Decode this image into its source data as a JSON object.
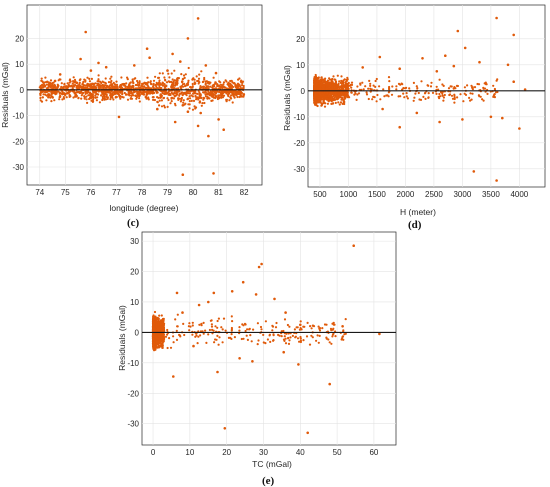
{
  "colors": {
    "marker": "#e05a0a",
    "zero_line": "#1a1a1a",
    "grid": "#e3e3e3",
    "axis": "#262626"
  },
  "chart_data": [
    {
      "type": "scatter",
      "panel": "(c)",
      "xlabel": "longitude (degree)",
      "ylabel": "Residuals (mGal)",
      "xlim": [
        73.5,
        82.7
      ],
      "ylim": [
        -37,
        33
      ],
      "xticks": [
        74,
        75,
        76,
        77,
        78,
        79,
        80,
        81,
        82
      ],
      "yticks": [
        -30,
        -20,
        -10,
        0,
        10,
        20
      ],
      "grid": true,
      "reference_line_y": 0,
      "points": [
        [
          75.8,
          22.5
        ],
        [
          80.2,
          27.8
        ],
        [
          75.6,
          12.0
        ],
        [
          76.3,
          10.5
        ],
        [
          78.3,
          12.5
        ],
        [
          79.2,
          14.0
        ],
        [
          79.5,
          11.0
        ],
        [
          80.5,
          9.5
        ],
        [
          80.9,
          6.5
        ],
        [
          79.8,
          20.0
        ],
        [
          78.2,
          16.0
        ],
        [
          76.0,
          7.5
        ],
        [
          74.8,
          6.0
        ],
        [
          74.6,
          3.5
        ],
        [
          76.6,
          8.8
        ],
        [
          77.7,
          9.5
        ],
        [
          79.0,
          7.5
        ],
        [
          79.6,
          -6.0
        ],
        [
          79.8,
          -8.5
        ],
        [
          80.3,
          -9.0
        ],
        [
          80.2,
          -14.0
        ],
        [
          80.6,
          -18.0
        ],
        [
          81.0,
          -11.5
        ],
        [
          81.2,
          -15.5
        ],
        [
          80.8,
          -32.5
        ],
        [
          79.6,
          -33.0
        ],
        [
          77.1,
          -10.5
        ],
        [
          78.6,
          -7.5
        ],
        [
          79.3,
          -12.5
        ],
        [
          81.5,
          1.5
        ],
        [
          81.8,
          -1.5
        ]
      ],
      "dense_band": {
        "x_range": [
          74.0,
          82.0
        ],
        "typical_y_spread": 3.5,
        "estimated_points": 1500
      }
    },
    {
      "type": "scatter",
      "panel": "(d)",
      "xlabel": "H (meter)",
      "ylabel": "Residuals (mGal)",
      "xlim": [
        290,
        4450
      ],
      "ylim": [
        -37,
        33
      ],
      "xticks": [
        500,
        1000,
        1500,
        2000,
        2500,
        3000,
        3500,
        4000
      ],
      "yticks": [
        -30,
        -20,
        -10,
        0,
        10,
        20
      ],
      "grid": true,
      "reference_line_y": 0,
      "points": [
        [
          3600,
          28.0
        ],
        [
          2920,
          23.0
        ],
        [
          3900,
          21.5
        ],
        [
          3050,
          16.5
        ],
        [
          2700,
          13.5
        ],
        [
          1550,
          13.0
        ],
        [
          2300,
          12.5
        ],
        [
          3300,
          11.0
        ],
        [
          3800,
          10.0
        ],
        [
          2850,
          9.5
        ],
        [
          1900,
          8.5
        ],
        [
          1250,
          9.0
        ],
        [
          2550,
          7.5
        ],
        [
          3500,
          -10.0
        ],
        [
          3700,
          -10.5
        ],
        [
          3000,
          -11.0
        ],
        [
          1900,
          -14.0
        ],
        [
          2200,
          -8.5
        ],
        [
          4000,
          -14.5
        ],
        [
          3200,
          -31.0
        ],
        [
          3600,
          -34.5
        ],
        [
          2600,
          -12.0
        ],
        [
          1600,
          -7.0
        ],
        [
          3900,
          3.5
        ],
        [
          4100,
          0.5
        ]
      ],
      "dense_band": {
        "x_range": [
          400,
          1000
        ],
        "typical_y_spread": 4.0,
        "estimated_points": 1500
      }
    },
    {
      "type": "scatter",
      "panel": "(e)",
      "xlabel": "TC (mGal)",
      "ylabel": "Residuals (mGal)",
      "xlim": [
        -3,
        66
      ],
      "ylim": [
        -37,
        33
      ],
      "xticks": [
        0,
        10,
        20,
        30,
        40,
        50,
        60
      ],
      "yticks": [
        -30,
        -20,
        -10,
        0,
        10,
        20,
        30
      ],
      "grid": true,
      "reference_line_y": 0,
      "points": [
        [
          54.5,
          28.5
        ],
        [
          29.5,
          22.5
        ],
        [
          28.8,
          21.5
        ],
        [
          24.5,
          16.5
        ],
        [
          21.5,
          13.5
        ],
        [
          16.5,
          13.0
        ],
        [
          28.0,
          12.5
        ],
        [
          33.0,
          11.0
        ],
        [
          15.0,
          10.0
        ],
        [
          6.5,
          13.0
        ],
        [
          12.5,
          9.0
        ],
        [
          36.0,
          6.5
        ],
        [
          40.0,
          2.5
        ],
        [
          51.5,
          2.0
        ],
        [
          61.5,
          -0.5
        ],
        [
          23.5,
          -8.5
        ],
        [
          35.5,
          -6.5
        ],
        [
          39.5,
          -10.5
        ],
        [
          48.0,
          -17.0
        ],
        [
          5.5,
          -14.5
        ],
        [
          17.5,
          -13.0
        ],
        [
          19.5,
          -31.5
        ],
        [
          42.0,
          -33.0
        ],
        [
          27.0,
          -9.5
        ],
        [
          11.0,
          -4.5
        ],
        [
          8.0,
          6.5
        ]
      ],
      "dense_band": {
        "x_range": [
          0,
          3
        ],
        "typical_y_spread": 4.0,
        "estimated_points": 1500
      }
    }
  ]
}
